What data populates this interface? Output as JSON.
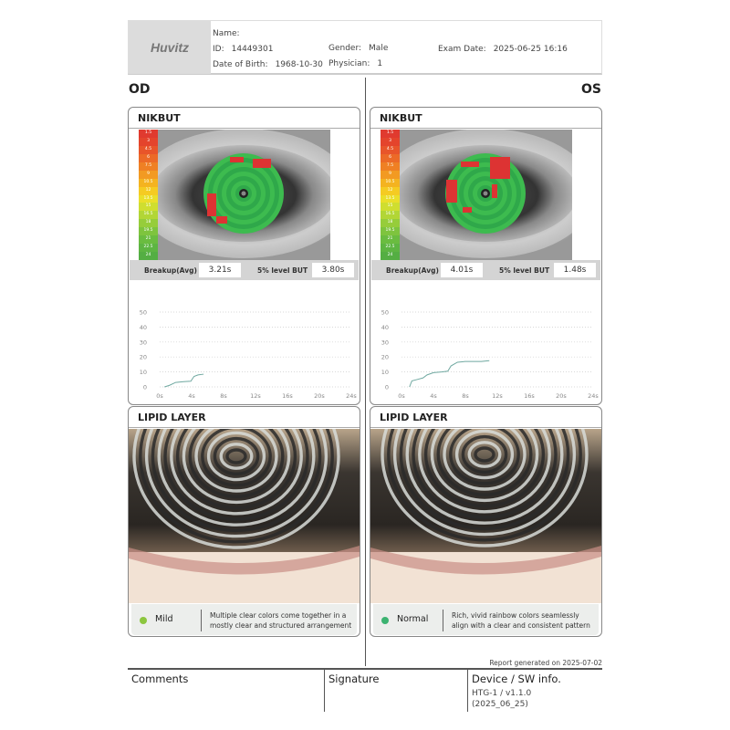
{
  "header": {
    "logo": "Huvitz",
    "name_label": "Name:",
    "name_value": "",
    "id_label": "ID:",
    "id_value": "14449301",
    "dob_label": "Date of Birth:",
    "dob_value": "1968-10-30",
    "gender_label": "Gender:",
    "gender_value": "Male",
    "physician_label": "Physician:",
    "physician_value": "1",
    "exam_label": "Exam Date:",
    "exam_value": "2025-06-25 16:16"
  },
  "sides": {
    "left": "OD",
    "right": "OS"
  },
  "colorbar": {
    "labels": [
      "1.5",
      "3",
      "4.5",
      "6",
      "7.5",
      "9",
      "10.5",
      "12",
      "13.5",
      "15",
      "16.5",
      "18",
      "19.5",
      "21",
      "22.5",
      "24"
    ],
    "colors": [
      "#e03a2f",
      "#e4442c",
      "#e8552a",
      "#ec6a27",
      "#ef8024",
      "#f29a22",
      "#f4b320",
      "#f5cb22",
      "#eadf2a",
      "#cfde30",
      "#b2d636",
      "#96cd3a",
      "#7ec43e",
      "#6abc40",
      "#5db542",
      "#54ae43"
    ]
  },
  "od": {
    "nikbut_title": "NIKBUT",
    "breakup_label": "Breakup(Avg)",
    "breakup_value": "3.21s",
    "level_label": "5% level BUT",
    "level_value": "3.80s",
    "lipid_title": "LIPID LAYER",
    "grade": "Mild",
    "grade_color": "#8cc63f",
    "desc": "Multiple clear colors come together in a mostly clear and structured arrangement"
  },
  "os": {
    "nikbut_title": "NIKBUT",
    "breakup_label": "Breakup(Avg)",
    "breakup_value": "4.01s",
    "level_label": "5% level BUT",
    "level_value": "1.48s",
    "lipid_title": "LIPID LAYER",
    "grade": "Normal",
    "grade_color": "#3cb371",
    "desc": "Rich, vivid rainbow colors seamlessly align with a clear and consistent pattern"
  },
  "chart_data": [
    {
      "type": "line",
      "eye": "OD",
      "xlim": [
        0,
        24
      ],
      "ylim": [
        0,
        50
      ],
      "x_ticks": [
        "0s",
        "4s",
        "8s",
        "12s",
        "16s",
        "20s",
        "24s"
      ],
      "y_ticks": [
        "0",
        "10",
        "20",
        "30",
        "40",
        "50"
      ],
      "grid": "horizontal dotted",
      "line_color": "#6fa8a0",
      "x": [
        0.6,
        1.2,
        2,
        3,
        3.9,
        4.3,
        4.8,
        5.5
      ],
      "y": [
        0,
        1,
        3,
        3.5,
        3.8,
        7,
        8,
        8.5
      ]
    },
    {
      "type": "line",
      "eye": "OS",
      "xlim": [
        0,
        24
      ],
      "ylim": [
        0,
        50
      ],
      "x_ticks": [
        "0s",
        "4s",
        "8s",
        "12s",
        "16s",
        "20s",
        "24s"
      ],
      "y_ticks": [
        "0",
        "10",
        "20",
        "30",
        "40",
        "50"
      ],
      "grid": "horizontal dotted",
      "line_color": "#6fa8a0",
      "x": [
        1,
        1.3,
        2,
        2.7,
        3.2,
        4,
        5,
        5.8,
        6.2,
        7,
        8,
        10,
        11
      ],
      "y": [
        0,
        4,
        5,
        6,
        8,
        9.5,
        10,
        10.5,
        14,
        16.5,
        17,
        17,
        17.5
      ]
    }
  ],
  "report_generated": "Report generated on 2025-07-02",
  "footer": {
    "comments": "Comments",
    "signature": "Signature",
    "device_title": "Device / SW info.",
    "device_line1": "HTG-1 / v1.1.0",
    "device_line2": "(2025_06_25)"
  }
}
